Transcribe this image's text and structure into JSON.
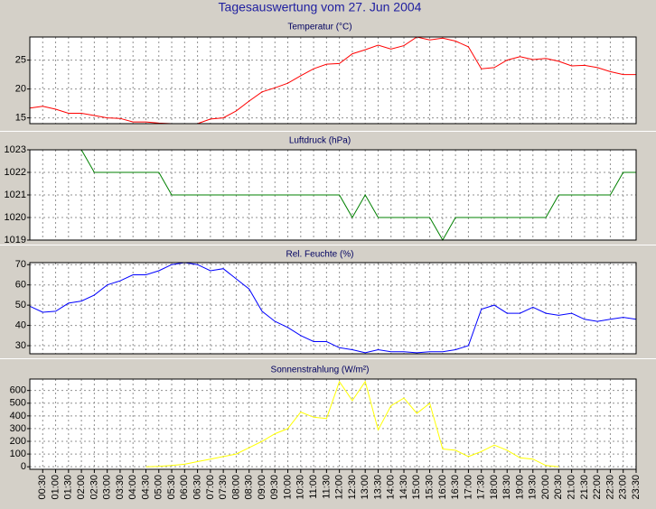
{
  "title": "Tagesauswertung vom 27. Jun 2004",
  "chart_data": [
    {
      "type": "line",
      "title": "Temperatur (°C)",
      "ylim": [
        14,
        29
      ],
      "yticks": [
        15,
        20,
        25
      ],
      "series": [
        {
          "color": "#ff0000",
          "values": [
            16.7,
            17.0,
            16.5,
            15.8,
            15.8,
            15.4,
            15.0,
            14.9,
            14.3,
            14.3,
            14.1,
            14.0,
            14.0,
            14.0,
            14.8,
            15.0,
            16.2,
            17.9,
            19.5,
            20.2,
            21.0,
            22.3,
            23.5,
            24.3,
            24.4,
            26.1,
            26.8,
            27.6,
            26.9,
            27.5,
            29.0,
            28.5,
            28.8,
            28.3,
            27.3,
            23.5,
            23.7,
            25.0,
            25.6,
            25.1,
            25.3,
            24.8,
            24.0,
            24.1,
            23.7,
            23.0,
            22.5,
            22.5
          ]
        }
      ]
    },
    {
      "type": "line",
      "title": "Luftdruck (hPa)",
      "ylim": [
        1019,
        1023
      ],
      "yticks": [
        1019,
        1020,
        1021,
        1022,
        1023
      ],
      "series": [
        {
          "color": "#008000",
          "values": [
            null,
            null,
            null,
            null,
            1023,
            1022,
            1022,
            1022,
            1022,
            1022,
            1022,
            1021,
            1021,
            1021,
            1021,
            1021,
            1021,
            1021,
            1021,
            1021,
            1021,
            1021,
            1021,
            1021,
            1021,
            1020,
            1021,
            1020,
            1020,
            1020,
            1020,
            1020,
            1019,
            1020,
            1020,
            1020,
            1020,
            1020,
            1020,
            1020,
            1020,
            1021,
            1021,
            1021,
            1021,
            1021,
            1022,
            1022
          ]
        }
      ]
    },
    {
      "type": "line",
      "title": "Rel. Feuchte (%)",
      "ylim": [
        26,
        71
      ],
      "yticks": [
        30,
        40,
        50,
        60,
        70
      ],
      "series": [
        {
          "color": "#0000ff",
          "values": [
            49.5,
            46.5,
            47,
            51,
            52,
            55,
            60,
            62,
            65,
            65,
            67,
            70,
            71,
            70,
            67,
            68,
            63,
            58,
            47,
            42,
            39,
            35,
            32,
            32,
            29,
            28,
            26.5,
            28,
            27,
            27,
            26.5,
            27,
            27,
            28,
            30,
            48,
            50,
            46,
            46,
            49,
            46,
            45,
            46,
            43,
            42,
            43,
            44,
            43
          ]
        }
      ]
    },
    {
      "type": "line",
      "title": "Sonnenstrahlung (W/m²)",
      "ylim": [
        -20,
        690
      ],
      "yticks": [
        0,
        100,
        200,
        300,
        400,
        500,
        600
      ],
      "categories": [
        null,
        "00:30",
        "01:00",
        "01:30",
        "02:00",
        "02:30",
        "03:00",
        "03:30",
        "04:00",
        "04:30",
        "05:00",
        "05:30",
        "06:00",
        "06:30",
        "07:00",
        "07:30",
        "08:00",
        "08:30",
        "09:00",
        "09:30",
        "10:00",
        "10:30",
        "11:00",
        "11:30",
        "12:00",
        "12:30",
        "13:00",
        "13:30",
        "14:00",
        "14:30",
        "15:00",
        "15:30",
        "16:00",
        "16:30",
        "17:00",
        "17:30",
        "18:00",
        "18:30",
        "19:00",
        "19:30",
        "20:00",
        "20:30",
        "21:00",
        "21:30",
        "22:00",
        "22:30",
        "23:00",
        "23:30"
      ],
      "series": [
        {
          "color": "#ffff00",
          "values": [
            null,
            null,
            null,
            null,
            null,
            null,
            null,
            null,
            null,
            0,
            3,
            10,
            20,
            40,
            60,
            80,
            100,
            150,
            200,
            260,
            300,
            430,
            390,
            380,
            670,
            520,
            670,
            290,
            480,
            540,
            420,
            500,
            140,
            130,
            80,
            120,
            170,
            130,
            70,
            60,
            10,
            0,
            null,
            null,
            null,
            null,
            null,
            null
          ]
        }
      ]
    }
  ]
}
